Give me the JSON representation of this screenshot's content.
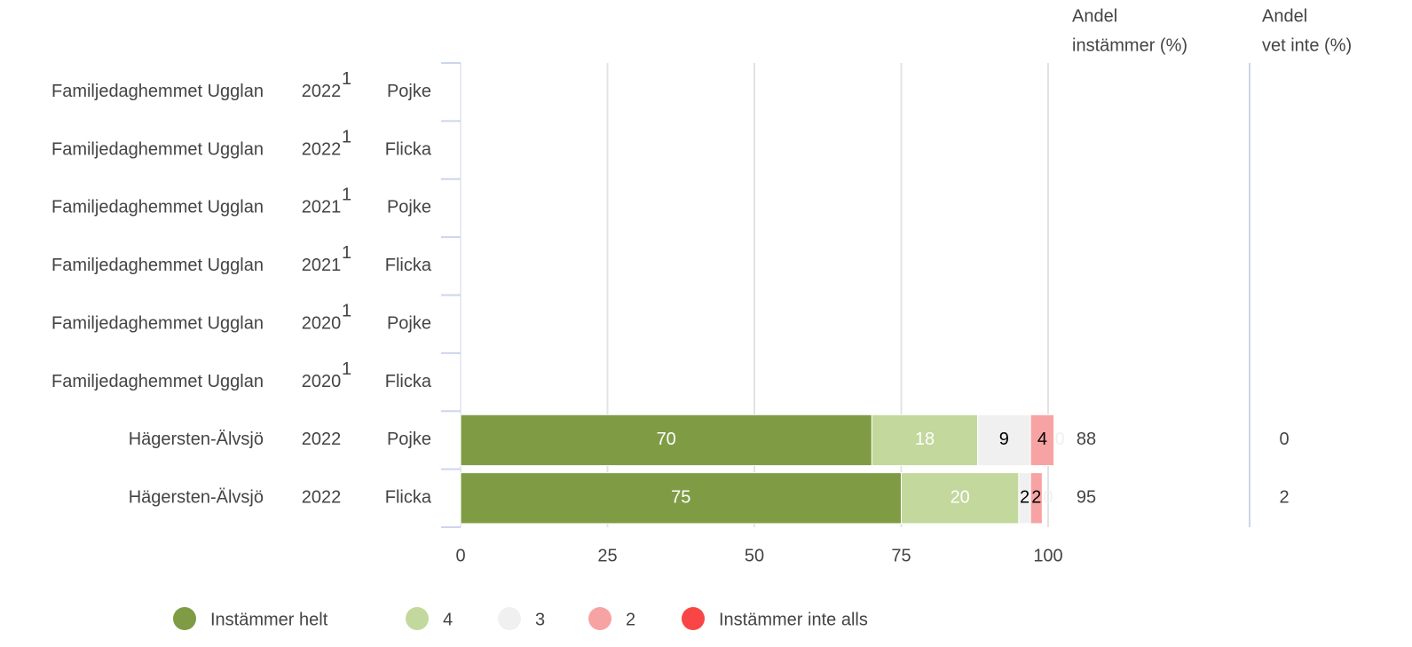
{
  "chart_data": {
    "type": "stacked_barh",
    "categories": [
      "Familjedaghemmet Ugglan",
      "Familjedaghemmet Ugglan",
      "Familjedaghemmet Ugglan",
      "Familjedaghemmet Ugglan",
      "Familjedaghemmet Ugglan",
      "Familjedaghemmet Ugglan",
      "Hägersten-Älvsjö",
      "Hägersten-Älvsjö"
    ],
    "years": [
      "2022",
      "2022",
      "2021",
      "2021",
      "2020",
      "2020",
      "2022",
      "2022"
    ],
    "notes": [
      "1",
      "1",
      "1",
      "1",
      "1",
      "1",
      null,
      null
    ],
    "genders": [
      "Pojke",
      "Flicka",
      "Pojke",
      "Flicka",
      "Pojke",
      "Flicka",
      "Pojke",
      "Flicka"
    ],
    "series": [
      {
        "name": "Instämmer helt",
        "color": "#7f9c45",
        "label_color": "#ffffff",
        "values": [
          null,
          null,
          null,
          null,
          null,
          null,
          70,
          75
        ]
      },
      {
        "name": "4",
        "color": "#c3d89c",
        "label_color": "#ffffff",
        "values": [
          null,
          null,
          null,
          null,
          null,
          null,
          18,
          20
        ]
      },
      {
        "name": "3",
        "color": "#f0f0f0",
        "label_color": "#000000",
        "values": [
          null,
          null,
          null,
          null,
          null,
          null,
          9,
          2
        ]
      },
      {
        "name": "2",
        "color": "#f7a3a3",
        "label_color": "#000000",
        "values": [
          null,
          null,
          null,
          null,
          null,
          null,
          4,
          2
        ]
      },
      {
        "name": "Instämmer inte alls",
        "color": "#f94545",
        "label_color": "#f0f0f0",
        "values": [
          null,
          null,
          null,
          null,
          null,
          null,
          0,
          0
        ]
      }
    ],
    "xlim": [
      0,
      100
    ],
    "xticks": [
      0,
      25,
      50,
      75,
      100
    ],
    "grid": true,
    "columns": [
      {
        "title": [
          "Andel",
          "instämmer (%)"
        ],
        "values": [
          null,
          null,
          null,
          null,
          null,
          null,
          88,
          95
        ]
      },
      {
        "title": [
          "Andel",
          "vet inte (%)"
        ],
        "values": [
          null,
          null,
          null,
          null,
          null,
          null,
          0,
          2
        ]
      }
    ]
  }
}
